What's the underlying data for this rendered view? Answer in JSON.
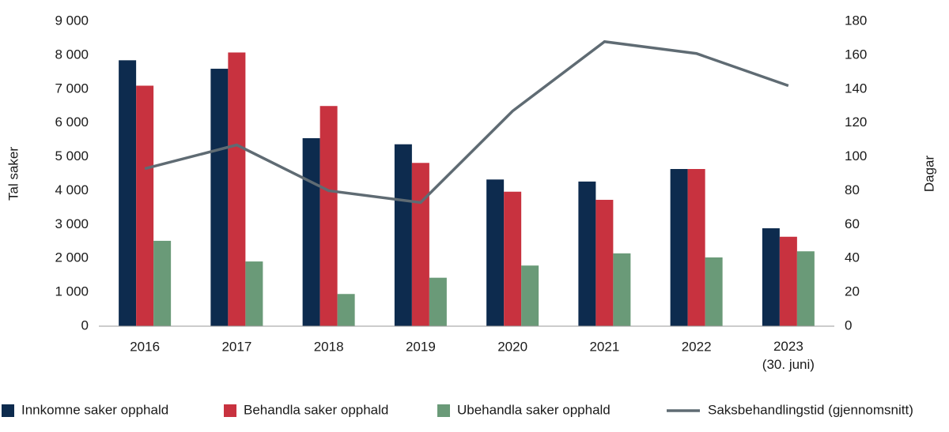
{
  "chart_data": {
    "type": "bar",
    "categories": [
      "2016",
      "2017",
      "2018",
      "2019",
      "2020",
      "2021",
      "2022",
      "2023\n(30. juni)"
    ],
    "series": [
      {
        "name": "Innkomne saker opphald",
        "type": "bar",
        "color": "#0d2b4e",
        "values": [
          7850,
          7600,
          5550,
          5370,
          4330,
          4270,
          4640,
          2890
        ]
      },
      {
        "name": "Behandla saker opphald",
        "type": "bar",
        "color": "#c8323f",
        "values": [
          7100,
          8080,
          6500,
          4820,
          3970,
          3730,
          4640,
          2640
        ]
      },
      {
        "name": "Ubehandla saker opphald",
        "type": "bar",
        "color": "#6a9a78",
        "values": [
          2520,
          1910,
          950,
          1430,
          1790,
          2150,
          2030,
          2210
        ]
      },
      {
        "name": "Saksbehandlingstid (gjennomsnitt)",
        "type": "line",
        "axis": "y2",
        "color": "#5f6b73",
        "values": [
          93,
          107,
          80,
          73,
          127,
          168,
          161,
          142
        ]
      }
    ],
    "ylabel": "Tal saker",
    "y2label": "Dagar",
    "ylim": [
      0,
      9000
    ],
    "yticks": [
      0,
      {
        "value": 1000,
        "label": "1 000"
      },
      {
        "value": 2000,
        "label": "2 000"
      },
      {
        "value": 3000,
        "label": "3 000"
      },
      {
        "value": 4000,
        "label": "4 000"
      },
      {
        "value": 5000,
        "label": "5 000"
      },
      {
        "value": 6000,
        "label": "6 000"
      },
      {
        "value": 7000,
        "label": "7 000"
      },
      {
        "value": 8000,
        "label": "8 000"
      },
      {
        "value": 9000,
        "label": "9 000"
      }
    ],
    "y2lim": [
      0,
      180
    ],
    "y2ticks": [
      0,
      20,
      40,
      60,
      80,
      100,
      120,
      140,
      160,
      180
    ],
    "grid": false,
    "legend": "bottom"
  }
}
